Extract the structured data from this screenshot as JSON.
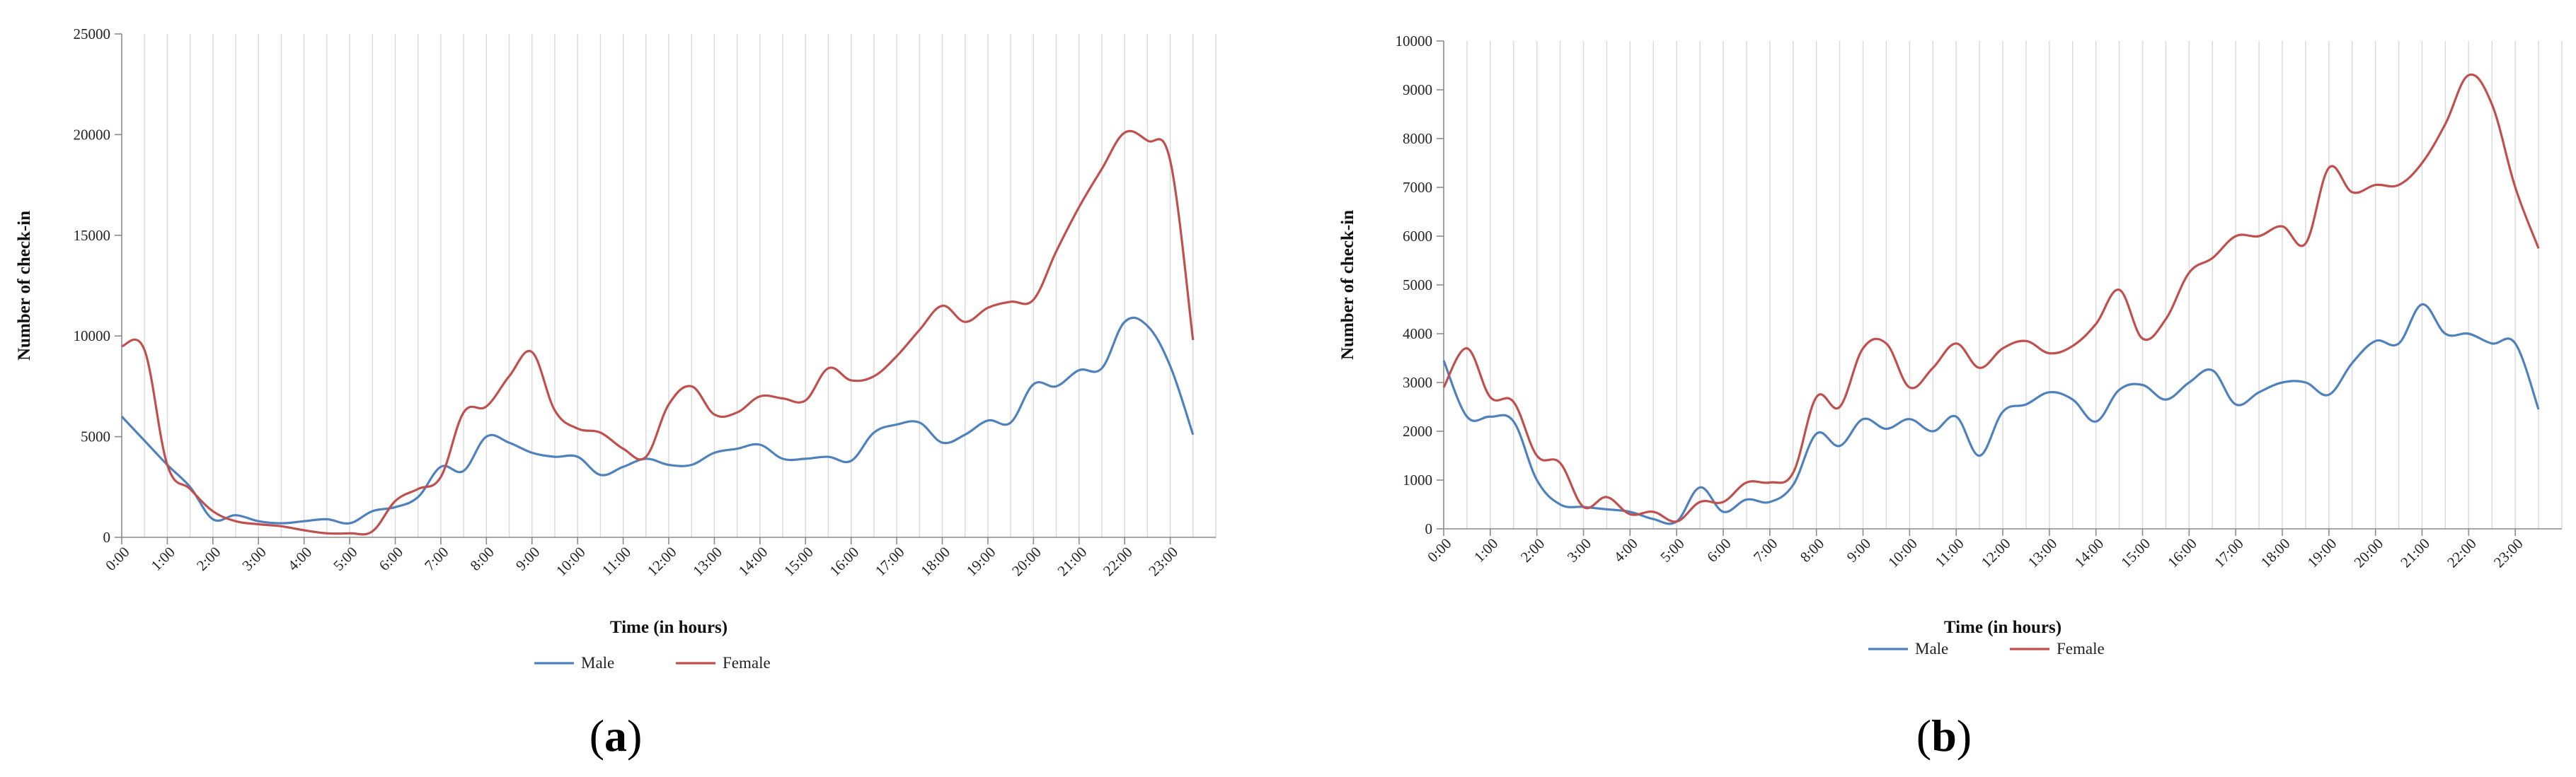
{
  "chart_data": [
    {
      "id": "a",
      "type": "line",
      "panel_label": {
        "open": "(",
        "letter": "a",
        "close": ")"
      },
      "xlabel": "Time (in hours)",
      "ylabel": "Number of check-in",
      "ylim": [
        0,
        25000
      ],
      "yticks": [
        0,
        5000,
        10000,
        15000,
        20000,
        25000
      ],
      "x_tick_labels": [
        "0:00",
        "1:00",
        "2:00",
        "3:00",
        "4:00",
        "5:00",
        "6:00",
        "7:00",
        "8:00",
        "9:00",
        "10:00",
        "11:00",
        "12:00",
        "13:00",
        "14:00",
        "15:00",
        "16:00",
        "17:00",
        "18:00",
        "19:00",
        "20:00",
        "21:00",
        "22:00",
        "23:00"
      ],
      "grid": "vertical",
      "legend": "bottom-center",
      "x": [
        0,
        0.5,
        1,
        1.5,
        2,
        2.5,
        3,
        3.5,
        4,
        4.5,
        5,
        5.5,
        6,
        6.5,
        7,
        7.5,
        8,
        8.5,
        9,
        9.5,
        10,
        10.5,
        11,
        11.5,
        12,
        12.5,
        13,
        13.5,
        14,
        14.5,
        15,
        15.5,
        16,
        16.5,
        17,
        17.5,
        18,
        18.5,
        19,
        19.5,
        20,
        20.5,
        21,
        21.5,
        22,
        22.5,
        23,
        23.5
      ],
      "series": [
        {
          "name": "Male",
          "color": "#4f81bd",
          "values": [
            6000,
            4800,
            3600,
            2500,
            900,
            1100,
            800,
            700,
            800,
            900,
            700,
            1300,
            1500,
            2000,
            3500,
            3300,
            5000,
            4700,
            4200,
            4000,
            4000,
            3100,
            3500,
            3900,
            3600,
            3600,
            4200,
            4400,
            4600,
            3900,
            3900,
            4000,
            3800,
            5200,
            5600,
            5700,
            4700,
            5100,
            5800,
            5700,
            7600,
            7500,
            8300,
            8400,
            10700,
            10500,
            8500,
            5100
          ]
        },
        {
          "name": "Female",
          "color": "#c0504d",
          "values": [
            9500,
            9300,
            3600,
            2400,
            1300,
            800,
            650,
            550,
            350,
            200,
            200,
            300,
            1800,
            2400,
            3000,
            6200,
            6500,
            8000,
            9200,
            6300,
            5400,
            5200,
            4400,
            4000,
            6600,
            7500,
            6100,
            6200,
            7000,
            6900,
            6800,
            8400,
            7800,
            8000,
            9000,
            10300,
            11500,
            10700,
            11400,
            11700,
            11800,
            14200,
            16400,
            18300,
            20100,
            19700,
            18700,
            9800
          ]
        }
      ]
    },
    {
      "id": "b",
      "type": "line",
      "panel_label": {
        "open": "(",
        "letter": "b",
        "close": ")"
      },
      "xlabel": "Time (in hours)",
      "ylabel": "Number of check-in",
      "ylim": [
        0,
        10000
      ],
      "yticks": [
        0,
        1000,
        2000,
        3000,
        4000,
        5000,
        6000,
        7000,
        8000,
        9000,
        10000
      ],
      "x_tick_labels": [
        "0:00",
        "1:00",
        "2:00",
        "3:00",
        "4:00",
        "5:00",
        "6:00",
        "7:00",
        "8:00",
        "9:00",
        "10:00",
        "11:00",
        "12:00",
        "13:00",
        "14:00",
        "15:00",
        "16:00",
        "17:00",
        "18:00",
        "19:00",
        "20:00",
        "21:00",
        "22:00",
        "23:00"
      ],
      "grid": "vertical",
      "legend": "bottom-center",
      "x": [
        0,
        0.5,
        1,
        1.5,
        2,
        2.5,
        3,
        3.5,
        4,
        4.5,
        5,
        5.5,
        6,
        6.5,
        7,
        7.5,
        8,
        8.5,
        9,
        9.5,
        10,
        10.5,
        11,
        11.5,
        12,
        12.5,
        13,
        13.5,
        14,
        14.5,
        15,
        15.5,
        16,
        16.5,
        17,
        17.5,
        18,
        18.5,
        19,
        19.5,
        20,
        20.5,
        21,
        21.5,
        22,
        22.5,
        23,
        23.5
      ],
      "series": [
        {
          "name": "Male",
          "color": "#4f81bd",
          "values": [
            3450,
            2300,
            2300,
            2200,
            1000,
            500,
            450,
            400,
            350,
            200,
            150,
            850,
            350,
            600,
            550,
            900,
            1950,
            1700,
            2250,
            2050,
            2250,
            2000,
            2300,
            1500,
            2400,
            2550,
            2800,
            2650,
            2200,
            2850,
            2950,
            2650,
            3000,
            3250,
            2550,
            2800,
            3000,
            3000,
            2750,
            3400,
            3850,
            3800,
            4600,
            4000,
            4000,
            3800,
            3800,
            2450
          ]
        },
        {
          "name": "Female",
          "color": "#c0504d",
          "values": [
            2900,
            3700,
            2700,
            2600,
            1500,
            1350,
            450,
            650,
            300,
            350,
            150,
            550,
            550,
            950,
            950,
            1150,
            2700,
            2500,
            3700,
            3800,
            2900,
            3300,
            3800,
            3300,
            3700,
            3850,
            3600,
            3750,
            4200,
            4900,
            3900,
            4300,
            5250,
            5550,
            6000,
            6000,
            6200,
            5850,
            7400,
            6900,
            7050,
            7050,
            7500,
            8300,
            9300,
            8700,
            7000,
            5750
          ]
        }
      ]
    }
  ]
}
